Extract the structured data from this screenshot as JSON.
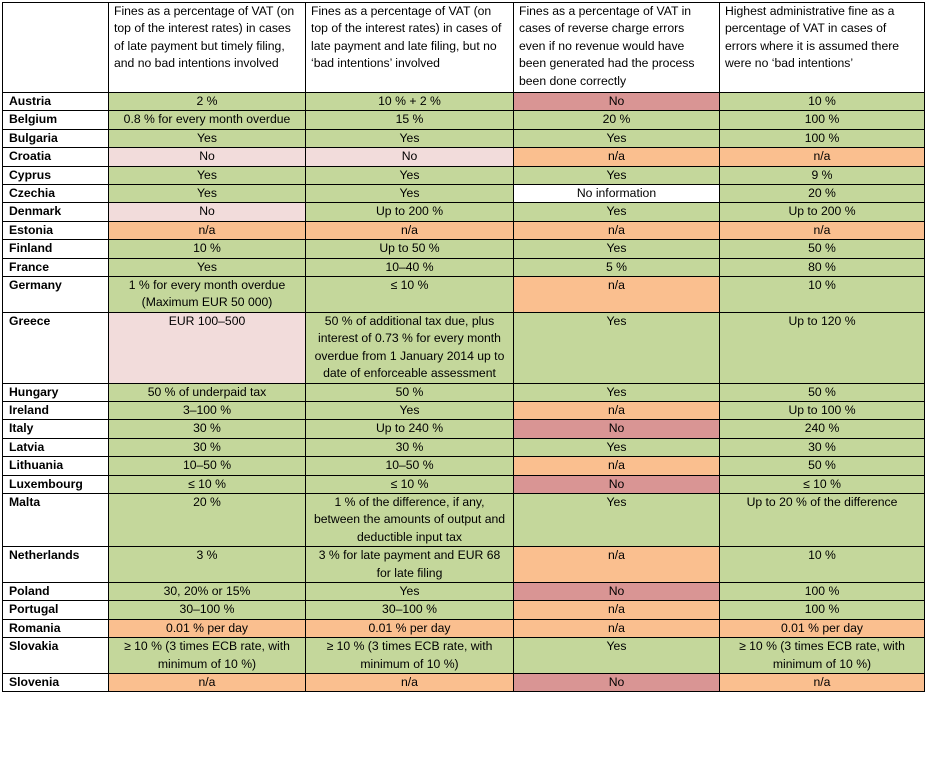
{
  "headers": [
    "",
    "Fines as a percentage of VAT (on top of the interest rates) in cases of late payment but timely filing, and no bad intentions involved",
    "Fines as a percentage of VAT (on top of the interest rates) in cases of late payment and late filing, but no ‘bad intentions’ involved",
    "Fines as a percentage of VAT in cases of reverse charge errors even if no revenue would have been generated had the process been done correctly",
    "Highest administrative fine as a percentage of VAT in cases of errors where it is assumed there were no ‘bad intentions’"
  ],
  "colors": {
    "g": "#c4d79b",
    "r": "#d99594",
    "o": "#fabf8f",
    "p": "#f2dcdb",
    "w": "#ffffff"
  },
  "rows": [
    {
      "country": "Austria",
      "cells": [
        {
          "t": "2 %",
          "c": "g"
        },
        {
          "t": "10 % + 2 %",
          "c": "g"
        },
        {
          "t": "No",
          "c": "r"
        },
        {
          "t": "10 %",
          "c": "g"
        }
      ]
    },
    {
      "country": "Belgium",
      "cells": [
        {
          "t": "0.8 % for every month overdue",
          "c": "g"
        },
        {
          "t": "15 %",
          "c": "g"
        },
        {
          "t": "20 %",
          "c": "g"
        },
        {
          "t": "100 %",
          "c": "g"
        }
      ]
    },
    {
      "country": "Bulgaria",
      "cells": [
        {
          "t": "Yes",
          "c": "g"
        },
        {
          "t": "Yes",
          "c": "g"
        },
        {
          "t": "Yes",
          "c": "g"
        },
        {
          "t": "100 %",
          "c": "g"
        }
      ]
    },
    {
      "country": "Croatia",
      "cells": [
        {
          "t": "No",
          "c": "p"
        },
        {
          "t": "No",
          "c": "p"
        },
        {
          "t": "n/a",
          "c": "o"
        },
        {
          "t": "n/a",
          "c": "o"
        }
      ]
    },
    {
      "country": "Cyprus",
      "cells": [
        {
          "t": "Yes",
          "c": "g"
        },
        {
          "t": "Yes",
          "c": "g"
        },
        {
          "t": "Yes",
          "c": "g"
        },
        {
          "t": "9 %",
          "c": "g"
        }
      ]
    },
    {
      "country": "Czechia",
      "cells": [
        {
          "t": "Yes",
          "c": "g"
        },
        {
          "t": "Yes",
          "c": "g"
        },
        {
          "t": "No information",
          "c": "w"
        },
        {
          "t": "20 %",
          "c": "g"
        }
      ]
    },
    {
      "country": "Denmark",
      "cells": [
        {
          "t": "No",
          "c": "p"
        },
        {
          "t": "Up to 200 %",
          "c": "g"
        },
        {
          "t": "Yes",
          "c": "g"
        },
        {
          "t": "Up to 200 %",
          "c": "g"
        }
      ]
    },
    {
      "country": "Estonia",
      "cells": [
        {
          "t": "n/a",
          "c": "o"
        },
        {
          "t": "n/a",
          "c": "o"
        },
        {
          "t": "n/a",
          "c": "o"
        },
        {
          "t": "n/a",
          "c": "o"
        }
      ]
    },
    {
      "country": "Finland",
      "cells": [
        {
          "t": "10 %",
          "c": "g"
        },
        {
          "t": "Up to 50 %",
          "c": "g"
        },
        {
          "t": "Yes",
          "c": "g"
        },
        {
          "t": "50 %",
          "c": "g"
        }
      ]
    },
    {
      "country": "France",
      "cells": [
        {
          "t": "Yes",
          "c": "g"
        },
        {
          "t": "10–40 %",
          "c": "g"
        },
        {
          "t": "5 %",
          "c": "g"
        },
        {
          "t": "80 %",
          "c": "g"
        }
      ]
    },
    {
      "country": "Germany",
      "cells": [
        {
          "t": "1 % for every month overdue\n(Maximum EUR 50 000)",
          "c": "g"
        },
        {
          "t": "≤ 10 %",
          "c": "g"
        },
        {
          "t": "n/a",
          "c": "o"
        },
        {
          "t": "10 %",
          "c": "g"
        }
      ]
    },
    {
      "country": "Greece",
      "cells": [
        {
          "t": "EUR 100–500",
          "c": "p"
        },
        {
          "t": "50 % of additional tax due, plus interest of 0.73 % for every month overdue from 1 January 2014 up to date of enforceable assessment",
          "c": "g"
        },
        {
          "t": "Yes",
          "c": "g"
        },
        {
          "t": "Up to 120 %",
          "c": "g"
        }
      ]
    },
    {
      "country": "Hungary",
      "cells": [
        {
          "t": "50 % of underpaid tax",
          "c": "g"
        },
        {
          "t": "50 %",
          "c": "g"
        },
        {
          "t": "Yes",
          "c": "g"
        },
        {
          "t": "50 %",
          "c": "g"
        }
      ]
    },
    {
      "country": "Ireland",
      "cells": [
        {
          "t": "3–100 %",
          "c": "g"
        },
        {
          "t": "Yes",
          "c": "g"
        },
        {
          "t": "n/a",
          "c": "o"
        },
        {
          "t": "Up to 100 %",
          "c": "g"
        }
      ]
    },
    {
      "country": "Italy",
      "cells": [
        {
          "t": "30 %",
          "c": "g"
        },
        {
          "t": "Up to 240 %",
          "c": "g"
        },
        {
          "t": "No",
          "c": "r"
        },
        {
          "t": "240 %",
          "c": "g"
        }
      ]
    },
    {
      "country": "Latvia",
      "cells": [
        {
          "t": "30 %",
          "c": "g"
        },
        {
          "t": "30 %",
          "c": "g"
        },
        {
          "t": "Yes",
          "c": "g"
        },
        {
          "t": "30 %",
          "c": "g"
        }
      ]
    },
    {
      "country": "Lithuania",
      "cells": [
        {
          "t": "10–50 %",
          "c": "g"
        },
        {
          "t": "10–50 %",
          "c": "g"
        },
        {
          "t": "n/a",
          "c": "o"
        },
        {
          "t": "50 %",
          "c": "g"
        }
      ]
    },
    {
      "country": "Luxembourg",
      "cells": [
        {
          "t": "≤ 10 %",
          "c": "g"
        },
        {
          "t": "≤ 10 %",
          "c": "g"
        },
        {
          "t": "No",
          "c": "r"
        },
        {
          "t": "≤ 10 %",
          "c": "g"
        }
      ]
    },
    {
      "country": "Malta",
      "cells": [
        {
          "t": "20 %",
          "c": "g"
        },
        {
          "t": "1 % of the difference, if any, between the amounts of output and deductible input tax",
          "c": "g"
        },
        {
          "t": "Yes",
          "c": "g"
        },
        {
          "t": "Up to 20 % of the difference",
          "c": "g"
        }
      ]
    },
    {
      "country": "Netherlands",
      "cells": [
        {
          "t": "3 %",
          "c": "g"
        },
        {
          "t": "3 % for late payment and EUR 68 for late filing",
          "c": "g"
        },
        {
          "t": "n/a",
          "c": "o"
        },
        {
          "t": "10 %",
          "c": "g"
        }
      ]
    },
    {
      "country": "Poland",
      "cells": [
        {
          "t": "30, 20% or 15%",
          "c": "g"
        },
        {
          "t": "Yes",
          "c": "g"
        },
        {
          "t": "No",
          "c": "r"
        },
        {
          "t": "100 %",
          "c": "g"
        }
      ]
    },
    {
      "country": "Portugal",
      "cells": [
        {
          "t": "30–100 %",
          "c": "g"
        },
        {
          "t": "30–100 %",
          "c": "g"
        },
        {
          "t": "n/a",
          "c": "o"
        },
        {
          "t": "100 %",
          "c": "g"
        }
      ]
    },
    {
      "country": "Romania",
      "cells": [
        {
          "t": "0.01 % per day",
          "c": "o"
        },
        {
          "t": "0.01 % per day",
          "c": "o"
        },
        {
          "t": "n/a",
          "c": "o"
        },
        {
          "t": "0.01 % per day",
          "c": "o"
        }
      ]
    },
    {
      "country": "Slovakia",
      "cells": [
        {
          "t": "≥ 10 % (3 times ECB rate, with minimum of 10 %)",
          "c": "g"
        },
        {
          "t": "≥ 10 % (3 times ECB rate, with minimum of 10 %)",
          "c": "g"
        },
        {
          "t": "Yes",
          "c": "g"
        },
        {
          "t": "≥ 10 % (3 times ECB rate, with minimum of 10 %)",
          "c": "g"
        }
      ]
    },
    {
      "country": "Slovenia",
      "cells": [
        {
          "t": "n/a",
          "c": "o"
        },
        {
          "t": "n/a",
          "c": "o"
        },
        {
          "t": "No",
          "c": "r"
        },
        {
          "t": "n/a",
          "c": "o"
        }
      ]
    }
  ]
}
